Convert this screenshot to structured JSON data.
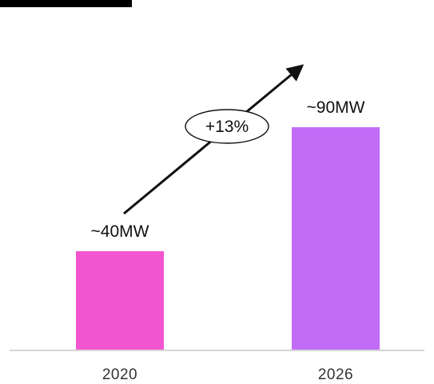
{
  "chart_data": {
    "type": "bar",
    "categories": [
      "2020",
      "2026"
    ],
    "values": [
      40,
      90
    ],
    "data_labels": [
      "~40MW",
      "~90MW"
    ],
    "colors": [
      "#f255cf",
      "#c06cf6"
    ],
    "ylim": [
      0,
      100
    ],
    "grid": false,
    "annotation": {
      "text": "+13%",
      "type": "growth-arrow"
    }
  }
}
